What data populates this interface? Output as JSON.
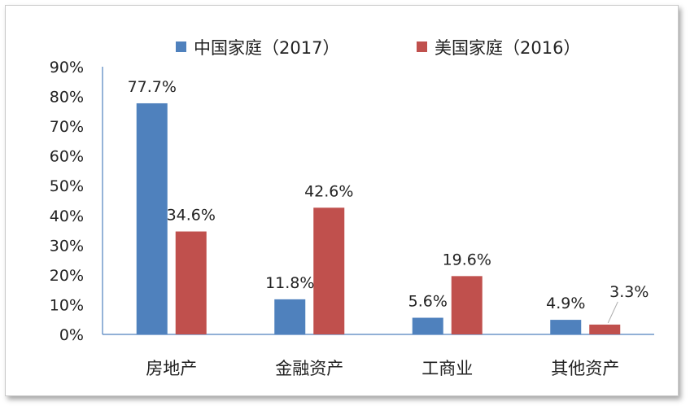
{
  "chart_data": {
    "type": "bar",
    "categories": [
      "房地产",
      "金融资产",
      "工商业",
      "其他资产"
    ],
    "series": [
      {
        "name": "中国家庭（2017）",
        "values": [
          77.7,
          11.8,
          5.6,
          4.9
        ],
        "color": "#4f81bd",
        "labels": [
          "77.7%",
          "11.8%",
          "5.6%",
          "4.9%"
        ]
      },
      {
        "name": "美国家庭（2016）",
        "values": [
          34.6,
          42.6,
          19.6,
          3.3
        ],
        "color": "#c0504d",
        "labels": [
          "34.6%",
          "42.6%",
          "19.6%",
          "3.3%"
        ]
      }
    ],
    "ylim": [
      0,
      90
    ],
    "yticks": [
      0,
      10,
      20,
      30,
      40,
      50,
      60,
      70,
      80,
      90
    ],
    "ytick_labels": [
      "0%",
      "10%",
      "20%",
      "30%",
      "40%",
      "50%",
      "60%",
      "70%",
      "80%",
      "90%"
    ],
    "legend_position": "top",
    "grid": false
  }
}
